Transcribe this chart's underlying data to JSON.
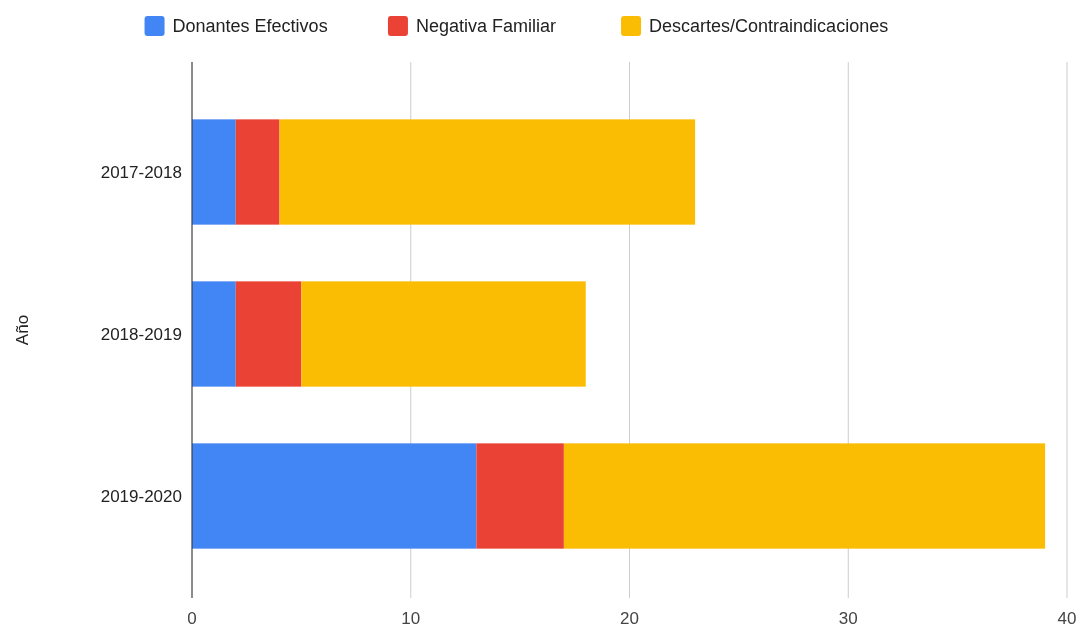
{
  "chart_data": {
    "type": "bar",
    "orientation": "horizontal",
    "stacked": true,
    "ylabel": "Año",
    "categories": [
      "2017-2018",
      "2018-2019",
      "2019-2020"
    ],
    "series": [
      {
        "name": "Donantes Efectivos",
        "color": "#4285f4",
        "values": [
          2,
          2,
          13
        ]
      },
      {
        "name": "Negativa Familiar",
        "color": "#ea4335",
        "values": [
          2,
          3,
          4
        ]
      },
      {
        "name": "Descartes/Contraindicaciones",
        "color": "#fbbc04",
        "values": [
          19,
          13,
          22
        ]
      }
    ],
    "xlim": [
      0,
      40
    ],
    "xticks": [
      0,
      10,
      20,
      30,
      40
    ],
    "grid": "x",
    "legend": "top"
  }
}
